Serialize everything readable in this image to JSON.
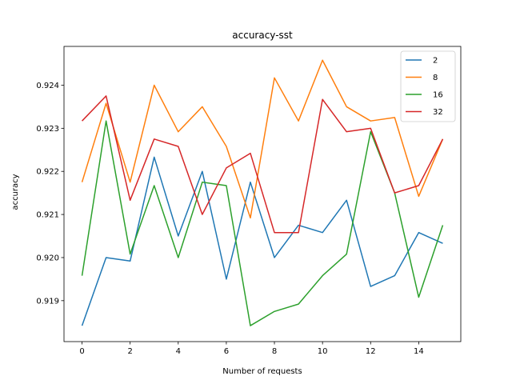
{
  "chart_data": {
    "type": "line",
    "title": "accuracy-sst",
    "xlabel": "Number of requests",
    "ylabel": "accuracy",
    "x": [
      0,
      1,
      2,
      3,
      4,
      5,
      6,
      7,
      8,
      9,
      10,
      11,
      12,
      13,
      14,
      15
    ],
    "xticks": [
      0,
      2,
      4,
      6,
      8,
      10,
      12,
      14
    ],
    "xtick_labels": [
      "0",
      "2",
      "4",
      "6",
      "8",
      "10",
      "12",
      "14"
    ],
    "yticks": [
      0.919,
      0.92,
      0.921,
      0.922,
      0.923,
      0.924
    ],
    "ytick_labels": [
      "0.919",
      "0.920",
      "0.921",
      "0.922",
      "0.923",
      "0.924"
    ],
    "xlim": [
      -0.75,
      15.75
    ],
    "ylim": [
      0.91805,
      0.9249
    ],
    "grid": false,
    "legend_position": "top-right",
    "series": [
      {
        "name": "2",
        "color": "#1f77b4",
        "values": [
          0.91842,
          0.92,
          0.91992,
          0.92233,
          0.9205,
          0.922,
          0.9195,
          0.92175,
          0.92,
          0.92075,
          0.92058,
          0.92133,
          0.91933,
          0.91958,
          0.92058,
          0.92033
        ]
      },
      {
        "name": "8",
        "color": "#ff7f0e",
        "values": [
          0.92175,
          0.92358,
          0.92175,
          0.924,
          0.92292,
          0.9235,
          0.92258,
          0.92092,
          0.92417,
          0.92317,
          0.92458,
          0.9235,
          0.92317,
          0.92325,
          0.92142,
          0.92275
        ]
      },
      {
        "name": "16",
        "color": "#2ca02c",
        "values": [
          0.91958,
          0.92317,
          0.92008,
          0.92167,
          0.92,
          0.92175,
          0.92167,
          0.91842,
          0.91875,
          0.91892,
          0.91958,
          0.92008,
          0.92292,
          0.9215,
          0.91908,
          0.92075
        ]
      },
      {
        "name": "32",
        "color": "#d62728",
        "values": [
          0.92317,
          0.92375,
          0.92133,
          0.92275,
          0.92258,
          0.921,
          0.92208,
          0.92242,
          0.92058,
          0.92058,
          0.92367,
          0.92292,
          0.923,
          0.9215,
          0.92167,
          0.92275
        ]
      }
    ]
  }
}
